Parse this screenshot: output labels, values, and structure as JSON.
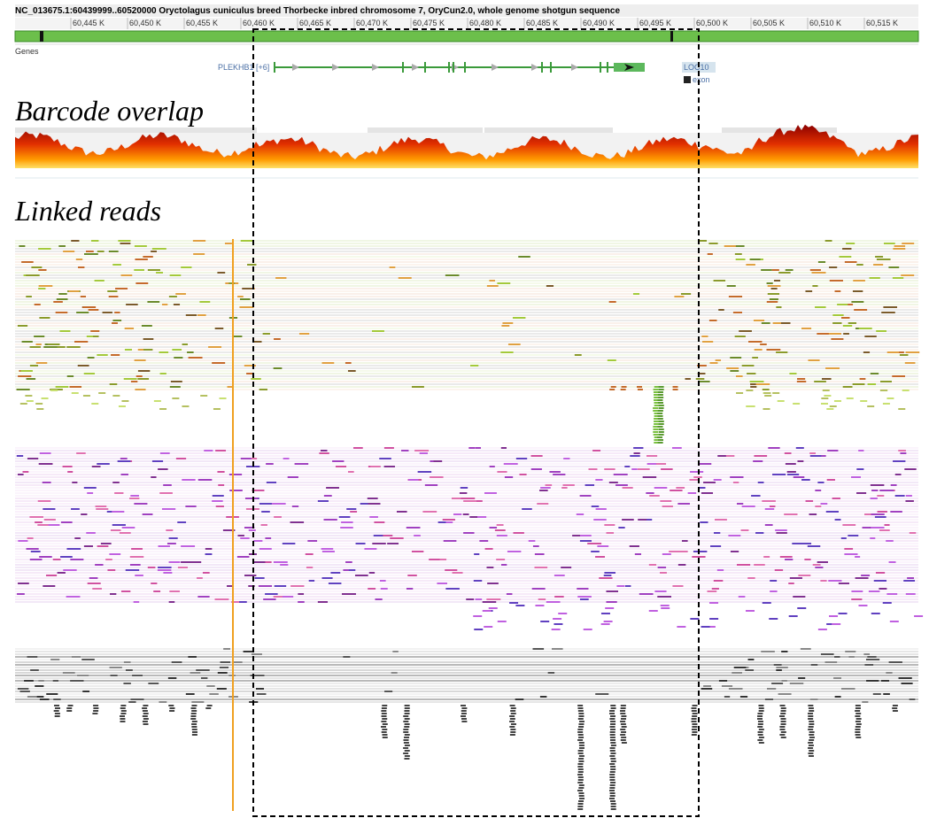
{
  "header": {
    "title": "NC_013675.1:60439999..60520000 Oryctolagus cuniculus breed Thorbecke inbred chromosome 7, OryCun2.0, whole genome shotgun sequence"
  },
  "ruler": {
    "ticks": [
      "60,445 K",
      "60,450 K",
      "60,455 K",
      "60,460 K",
      "60,465 K",
      "60,470 K",
      "60,475 K",
      "60,480 K",
      "60,485 K",
      "60,490 K",
      "60,495 K",
      "60,500 K",
      "60,505 K",
      "60,510 K",
      "60,515 K"
    ]
  },
  "tracks": {
    "genes": {
      "label": "Genes",
      "gene": "PLEKHB1 [+6]",
      "locus": "LOC10",
      "feature": "exon"
    }
  },
  "annotations": {
    "barcode_overlap": "Barcode overlap",
    "linked_reads": "Linked reads"
  }
}
